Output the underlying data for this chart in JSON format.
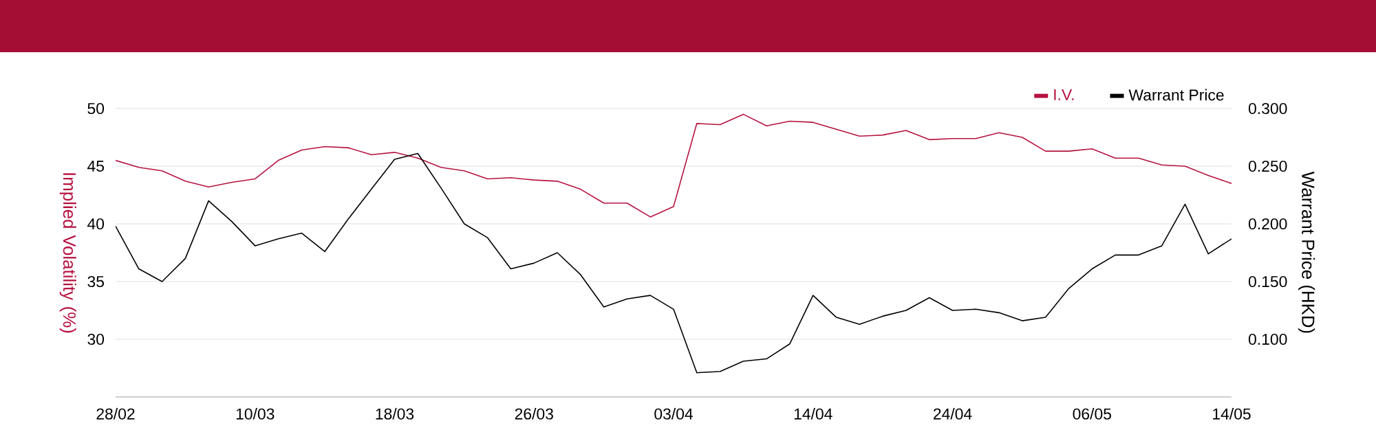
{
  "chart_data": {
    "type": "line",
    "categories": [
      "28/02",
      null,
      null,
      null,
      null,
      null,
      "10/03",
      null,
      null,
      null,
      null,
      null,
      "18/03",
      null,
      null,
      null,
      null,
      null,
      "26/03",
      null,
      null,
      null,
      null,
      null,
      "03/04",
      null,
      null,
      null,
      null,
      null,
      "14/04",
      null,
      null,
      null,
      null,
      null,
      "24/04",
      null,
      null,
      null,
      null,
      null,
      "06/05",
      null,
      null,
      null,
      null,
      null,
      "14/05"
    ],
    "series": [
      {
        "name": "I.V.",
        "color": "#b5123f",
        "axis": "y",
        "values": [
          45.5,
          44.9,
          44.6,
          43.7,
          43.2,
          43.6,
          43.9,
          45.5,
          46.4,
          46.7,
          46.6,
          46.0,
          46.2,
          45.7,
          44.9,
          44.6,
          43.9,
          44.0,
          43.8,
          43.7,
          43.0,
          41.8,
          41.8,
          40.6,
          41.5,
          48.7,
          48.6,
          49.5,
          48.5,
          48.9,
          48.8,
          48.2,
          47.6,
          47.7,
          48.1,
          47.3,
          47.4,
          47.4,
          47.9,
          47.5,
          46.3,
          46.3,
          46.5,
          45.7,
          45.7,
          45.1,
          45.0,
          44.2,
          43.5
        ]
      },
      {
        "name": "Warrant Price",
        "color": "#000000",
        "axis": "y2",
        "values": [
          0.198,
          0.161,
          0.15,
          0.17,
          0.22,
          0.202,
          0.181,
          0.187,
          0.192,
          0.176,
          0.204,
          0.23,
          0.256,
          0.261,
          0.231,
          0.2,
          0.188,
          0.161,
          0.166,
          0.175,
          0.156,
          0.128,
          0.135,
          0.138,
          0.126,
          0.071,
          0.072,
          0.081,
          0.083,
          0.096,
          0.138,
          0.119,
          0.113,
          0.12,
          0.125,
          0.136,
          0.125,
          0.126,
          0.123,
          0.116,
          0.119,
          0.144,
          0.161,
          0.173,
          0.173,
          0.181,
          0.217,
          0.174,
          0.187
        ]
      }
    ],
    "ylabel": "Implied Volatility (%)",
    "y2label": "Warrant Price (HKD)",
    "ylim": [
      25,
      50
    ],
    "yticks": [
      30,
      35,
      40,
      45,
      50
    ],
    "y2lim": [
      0.05,
      0.3
    ],
    "y2ticks": [
      {
        "value": 0.1,
        "label": "0.100"
      },
      {
        "value": 0.15,
        "label": "0.150"
      },
      {
        "value": 0.2,
        "label": "0.200"
      },
      {
        "value": 0.25,
        "label": "0.250"
      },
      {
        "value": 0.3,
        "label": "0.300"
      }
    ],
    "grid": "y",
    "legend": "top right"
  }
}
